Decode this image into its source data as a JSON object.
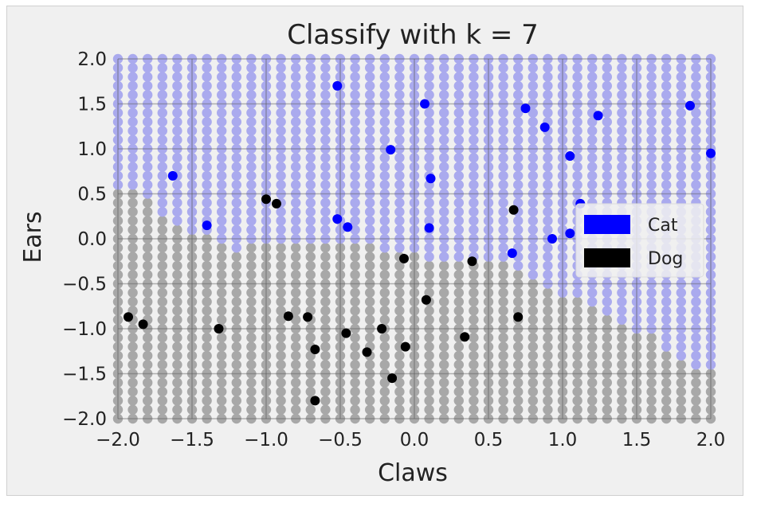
{
  "chart_data": {
    "type": "scatter",
    "title": "Classify with k = 7",
    "xlabel": "Claws",
    "ylabel": "Ears",
    "xlim": [
      -2.0,
      2.0
    ],
    "ylim": [
      -2.0,
      2.0
    ],
    "x_ticks": [
      "−2.0",
      "−1.5",
      "−1.0",
      "−0.5",
      "0.0",
      "0.5",
      "1.0",
      "1.5",
      "2.0"
    ],
    "y_ticks": [
      "2.0",
      "1.5",
      "1.0",
      "0.5",
      "0.0",
      "−0.5",
      "−1.0",
      "−1.5",
      "−2.0"
    ],
    "grid": true,
    "legend_position": "right",
    "background_grid": {
      "start": -2.0,
      "step": 0.1,
      "count": 41,
      "cat_color": "#aaaaee",
      "dog_color": "#a8a8a8",
      "boundary": [
        [
          -2.0,
          0.55
        ],
        [
          -1.8,
          0.45
        ],
        [
          -1.7,
          0.25
        ],
        [
          -1.5,
          0.1
        ],
        [
          -1.4,
          0.0
        ],
        [
          -1.2,
          -0.12
        ],
        [
          -1.0,
          -0.05
        ],
        [
          -0.5,
          -0.05
        ],
        [
          -0.3,
          -0.05
        ],
        [
          -0.2,
          -0.15
        ],
        [
          0.0,
          -0.15
        ],
        [
          0.1,
          -0.25
        ],
        [
          0.4,
          -0.3
        ],
        [
          0.55,
          -0.15
        ],
        [
          0.65,
          -0.25
        ],
        [
          0.8,
          -0.4
        ],
        [
          1.0,
          -0.6
        ],
        [
          1.2,
          -0.75
        ],
        [
          1.4,
          -0.9
        ],
        [
          1.5,
          -1.05
        ],
        [
          1.6,
          -1.1
        ],
        [
          1.8,
          -1.3
        ],
        [
          1.9,
          -1.45
        ],
        [
          2.0,
          -1.45
        ]
      ]
    },
    "series": [
      {
        "name": "Cat",
        "color": "#0000ff",
        "points": [
          [
            -0.52,
            1.7
          ],
          [
            0.07,
            1.5
          ],
          [
            0.75,
            1.45
          ],
          [
            0.88,
            1.24
          ],
          [
            1.24,
            1.37
          ],
          [
            1.86,
            1.48
          ],
          [
            -0.16,
            0.99
          ],
          [
            1.05,
            0.92
          ],
          [
            -1.63,
            0.7
          ],
          [
            0.11,
            0.67
          ],
          [
            -1.4,
            0.15
          ],
          [
            -0.52,
            0.22
          ],
          [
            -0.45,
            0.13
          ],
          [
            0.1,
            0.12
          ],
          [
            1.05,
            0.06
          ],
          [
            0.93,
            0.0
          ],
          [
            0.66,
            -0.16
          ],
          [
            1.12,
            0.39
          ],
          [
            2.0,
            0.95
          ]
        ]
      },
      {
        "name": "Dog",
        "color": "#000000",
        "points": [
          [
            -1.0,
            0.44
          ],
          [
            -0.93,
            0.39
          ],
          [
            0.67,
            0.32
          ],
          [
            -0.07,
            -0.22
          ],
          [
            0.39,
            -0.25
          ],
          [
            0.08,
            -0.68
          ],
          [
            -1.93,
            -0.87
          ],
          [
            -1.83,
            -0.95
          ],
          [
            -1.32,
            -1.0
          ],
          [
            -0.85,
            -0.86
          ],
          [
            -0.72,
            -0.87
          ],
          [
            -0.46,
            -1.05
          ],
          [
            -0.22,
            -1.0
          ],
          [
            0.7,
            -0.87
          ],
          [
            -0.67,
            -1.23
          ],
          [
            -0.32,
            -1.26
          ],
          [
            -0.06,
            -1.2
          ],
          [
            0.34,
            -1.09
          ],
          [
            -0.15,
            -1.55
          ],
          [
            -0.67,
            -1.8
          ]
        ]
      }
    ]
  }
}
